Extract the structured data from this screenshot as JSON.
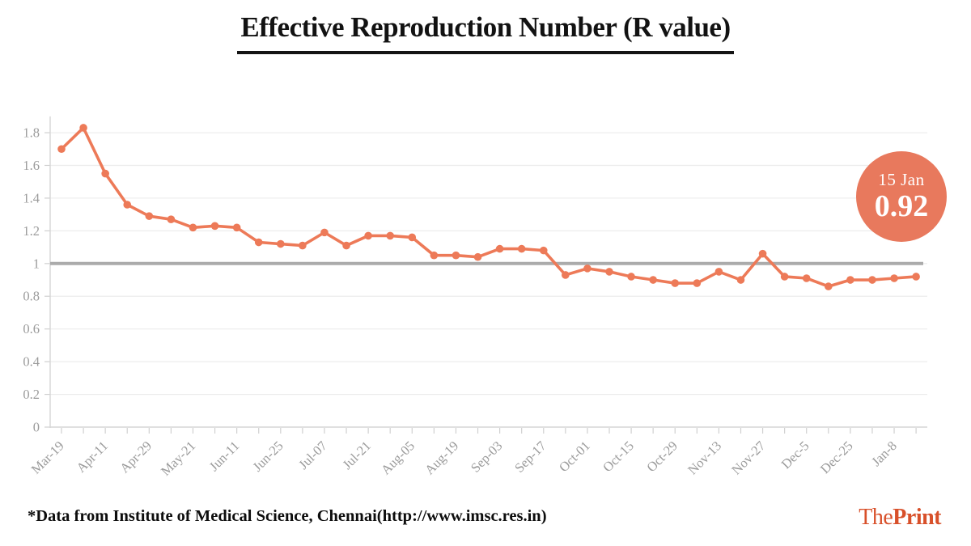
{
  "title": "Effective Reproduction Number (R value)",
  "badge": {
    "date": "15 Jan",
    "value": "0.92"
  },
  "footer": {
    "source_note": "*Data from Institute of Medical Science, Chennai(http://www.imsc.res.in)",
    "logo_the": "The",
    "logo_print": "Print"
  },
  "colors": {
    "line": "#ED7A58",
    "point": "#ED7A58",
    "badge_bg": "#E8795D",
    "reference_line": "#ABABAB",
    "grid": "#ECECEC",
    "axis_line": "#D6D6D6",
    "tick": "#D0D0D0",
    "axis_text": "#9B9B9B",
    "title_text": "#121212",
    "logo": "#D8502A"
  },
  "chart_data": {
    "type": "line",
    "title": "Effective Reproduction Number (R value)",
    "xlabel": "",
    "ylabel": "",
    "categories": [
      "Mar-19",
      "Apr-11",
      "Apr-29",
      "May-21",
      "Jun-11",
      "Jun-25",
      "Jul-07",
      "Jul-21",
      "Aug-05",
      "Aug-19",
      "Sep-03",
      "Sep-17",
      "Oct-01",
      "Oct-15",
      "Oct-29",
      "Nov-13",
      "Nov-27",
      "Dec-5",
      "Dec-25",
      "Jan-8"
    ],
    "label_step": 2,
    "series": [
      {
        "name": "R value",
        "values": [
          1.7,
          1.83,
          1.55,
          1.36,
          1.29,
          1.27,
          1.22,
          1.23,
          1.22,
          1.13,
          1.12,
          1.11,
          1.19,
          1.11,
          1.17,
          1.17,
          1.16,
          1.05,
          1.05,
          1.04,
          1.09,
          1.09,
          1.08,
          0.93,
          0.97,
          0.95,
          0.92,
          0.9,
          0.88,
          0.88,
          0.95,
          0.9,
          1.06,
          0.92,
          0.91,
          0.86,
          0.9,
          0.9,
          0.91,
          0.92
        ]
      }
    ],
    "yticks": [
      0,
      0.2,
      0.4,
      0.6,
      0.8,
      1,
      1.2,
      1.4,
      1.6,
      1.8
    ],
    "ytick_labels": [
      "0",
      "0.2",
      "0.4",
      "0.6",
      "0.8",
      "1",
      "1.2",
      "1.4",
      "1.6",
      "1.8"
    ],
    "ylim": [
      0,
      1.9
    ],
    "reference_line": 1,
    "grid": true,
    "legend": false,
    "last_point_annotation": {
      "date": "15 Jan",
      "value": "0.92"
    }
  }
}
